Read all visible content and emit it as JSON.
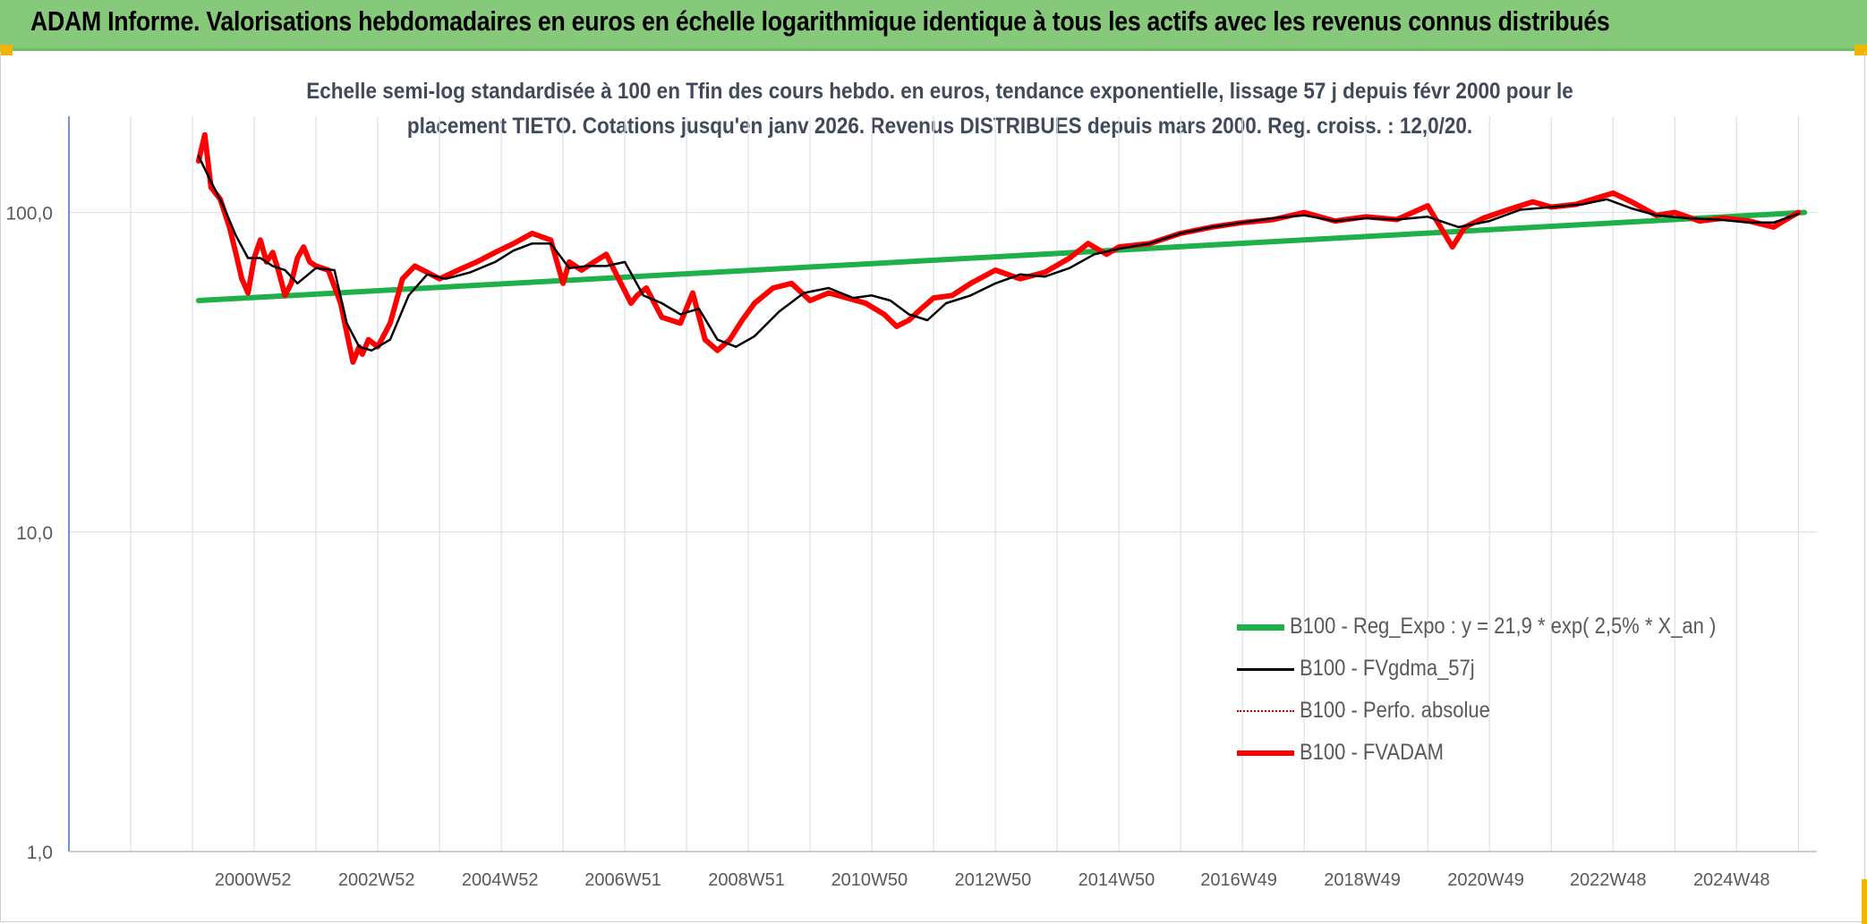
{
  "header": {
    "title": "ADAM Informe. Valorisations hebdomadaires en euros en échelle logarithmique identique à tous les actifs avec les revenus connus distribués"
  },
  "chart_data": {
    "type": "line",
    "title_line1": "Echelle semi-log standardisée à 100 en Tfin des cours hebdo. en euros, tendance exponentielle, lissage 57 j depuis févr 2000 pour le",
    "title_line2": "placement TIETO. Cotations jusqu'en janv 2026. Revenus DISTRIBUES depuis mars 2000. Reg. croiss. : 12,0/20.",
    "y_scale": "log",
    "ylim": [
      1,
      200
    ],
    "y_ticks": [
      {
        "value": 1,
        "label": "1,0"
      },
      {
        "value": 10,
        "label": "10,0"
      },
      {
        "value": 100,
        "label": "100,0"
      }
    ],
    "xlim": [
      1998.0,
      2026.3
    ],
    "x_ticks": [
      {
        "x": 2000.98,
        "label": "2000W52"
      },
      {
        "x": 2002.98,
        "label": "2002W52"
      },
      {
        "x": 2004.98,
        "label": "2004W52"
      },
      {
        "x": 2006.97,
        "label": "2006W51"
      },
      {
        "x": 2008.97,
        "label": "2008W51"
      },
      {
        "x": 2010.96,
        "label": "2010W50"
      },
      {
        "x": 2012.96,
        "label": "2012W50"
      },
      {
        "x": 2014.96,
        "label": "2014W50"
      },
      {
        "x": 2016.94,
        "label": "2016W49"
      },
      {
        "x": 2018.94,
        "label": "2018W49"
      },
      {
        "x": 2020.94,
        "label": "2020W49"
      },
      {
        "x": 2022.92,
        "label": "2022W48"
      },
      {
        "x": 2024.92,
        "label": "2024W48"
      }
    ],
    "grid": true,
    "legend_position": "bottom-right",
    "series": [
      {
        "name": "B100 - Reg_Expo : y = 21,9 * exp( 2,5% *  X_an )",
        "color": "#1fb04a",
        "style": "solid-thick",
        "x": [
          2000.1,
          2026.1
        ],
        "y": [
          53,
          100
        ]
      },
      {
        "name": "B100 - FVgdma_57j",
        "color": "#000000",
        "style": "solid",
        "x": [
          2000.1,
          2000.3,
          2000.5,
          2000.7,
          2000.9,
          2001.1,
          2001.3,
          2001.5,
          2001.7,
          2002.0,
          2002.3,
          2002.5,
          2002.7,
          2002.9,
          2003.2,
          2003.5,
          2003.8,
          2004.1,
          2004.5,
          2004.9,
          2005.2,
          2005.5,
          2005.8,
          2006.1,
          2006.4,
          2006.7,
          2007.0,
          2007.3,
          2007.6,
          2007.9,
          2008.2,
          2008.5,
          2008.8,
          2009.1,
          2009.5,
          2009.9,
          2010.3,
          2010.7,
          2011.0,
          2011.3,
          2011.6,
          2011.9,
          2012.2,
          2012.6,
          2013.0,
          2013.4,
          2013.8,
          2014.2,
          2014.6,
          2015.0,
          2015.5,
          2016.0,
          2016.5,
          2017.0,
          2017.5,
          2018.0,
          2018.5,
          2019.0,
          2019.5,
          2020.0,
          2020.5,
          2021.0,
          2021.5,
          2022.0,
          2022.5,
          2022.9,
          2023.3,
          2023.7,
          2024.2,
          2024.7,
          2025.2,
          2025.6,
          2026.0
        ],
        "y": [
          150,
          125,
          105,
          85,
          72,
          72,
          68,
          66,
          60,
          67,
          66,
          45,
          38,
          37,
          40,
          55,
          64,
          62,
          65,
          70,
          76,
          80,
          80,
          67,
          68,
          68,
          70,
          55,
          52,
          48,
          50,
          40,
          38,
          41,
          49,
          56,
          58,
          54,
          55,
          53,
          48,
          46,
          52,
          55,
          60,
          64,
          63,
          67,
          74,
          77,
          80,
          86,
          90,
          93,
          96,
          98,
          94,
          96,
          95,
          97,
          90,
          94,
          102,
          104,
          106,
          110,
          103,
          98,
          96,
          95,
          93,
          93,
          99
        ]
      },
      {
        "name": "B100 - Perfo. absolue",
        "color": "#c00000",
        "style": "dotted",
        "x": [],
        "y": []
      },
      {
        "name": "B100 - FVADAM",
        "color": "#ff0000",
        "style": "solid-thick",
        "x": [
          2000.1,
          2000.2,
          2000.3,
          2000.45,
          2000.6,
          2000.7,
          2000.8,
          2000.9,
          2001.0,
          2001.1,
          2001.2,
          2001.3,
          2001.4,
          2001.5,
          2001.6,
          2001.7,
          2001.8,
          2001.9,
          2002.0,
          2002.2,
          2002.4,
          2002.5,
          2002.6,
          2002.7,
          2002.75,
          2002.85,
          2003.0,
          2003.2,
          2003.4,
          2003.6,
          2003.8,
          2004.0,
          2004.3,
          2004.6,
          2004.9,
          2005.2,
          2005.5,
          2005.8,
          2006.0,
          2006.1,
          2006.3,
          2006.5,
          2006.7,
          2006.9,
          2007.1,
          2007.2,
          2007.35,
          2007.6,
          2007.9,
          2008.1,
          2008.3,
          2008.5,
          2008.7,
          2008.9,
          2009.1,
          2009.4,
          2009.7,
          2010.0,
          2010.3,
          2010.6,
          2010.9,
          2011.2,
          2011.4,
          2011.6,
          2011.8,
          2012.0,
          2012.3,
          2012.6,
          2013.0,
          2013.4,
          2013.8,
          2014.2,
          2014.5,
          2014.8,
          2015.0,
          2015.5,
          2016.0,
          2016.5,
          2017.0,
          2017.5,
          2018.0,
          2018.5,
          2019.0,
          2019.5,
          2020.0,
          2020.4,
          2020.6,
          2020.9,
          2021.3,
          2021.7,
          2022.0,
          2022.4,
          2022.8,
          2023.0,
          2023.3,
          2023.7,
          2024.0,
          2024.4,
          2024.8,
          2025.2,
          2025.6,
          2025.8,
          2026.0
        ],
        "y": [
          145,
          175,
          120,
          110,
          90,
          75,
          62,
          56,
          72,
          82,
          70,
          75,
          65,
          55,
          60,
          72,
          78,
          70,
          68,
          66,
          52,
          42,
          34,
          38,
          36,
          40,
          38,
          45,
          62,
          68,
          65,
          62,
          66,
          70,
          75,
          80,
          86,
          82,
          60,
          70,
          66,
          70,
          74,
          62,
          52,
          55,
          58,
          47,
          45,
          56,
          40,
          37,
          40,
          46,
          52,
          58,
          60,
          53,
          56,
          54,
          52,
          48,
          44,
          46,
          50,
          54,
          55,
          60,
          66,
          62,
          65,
          72,
          80,
          74,
          78,
          80,
          86,
          90,
          93,
          95,
          100,
          94,
          97,
          95,
          105,
          78,
          90,
          96,
          102,
          108,
          104,
          106,
          112,
          115,
          108,
          98,
          100,
          94,
          96,
          94,
          90,
          95,
          100
        ]
      }
    ]
  }
}
